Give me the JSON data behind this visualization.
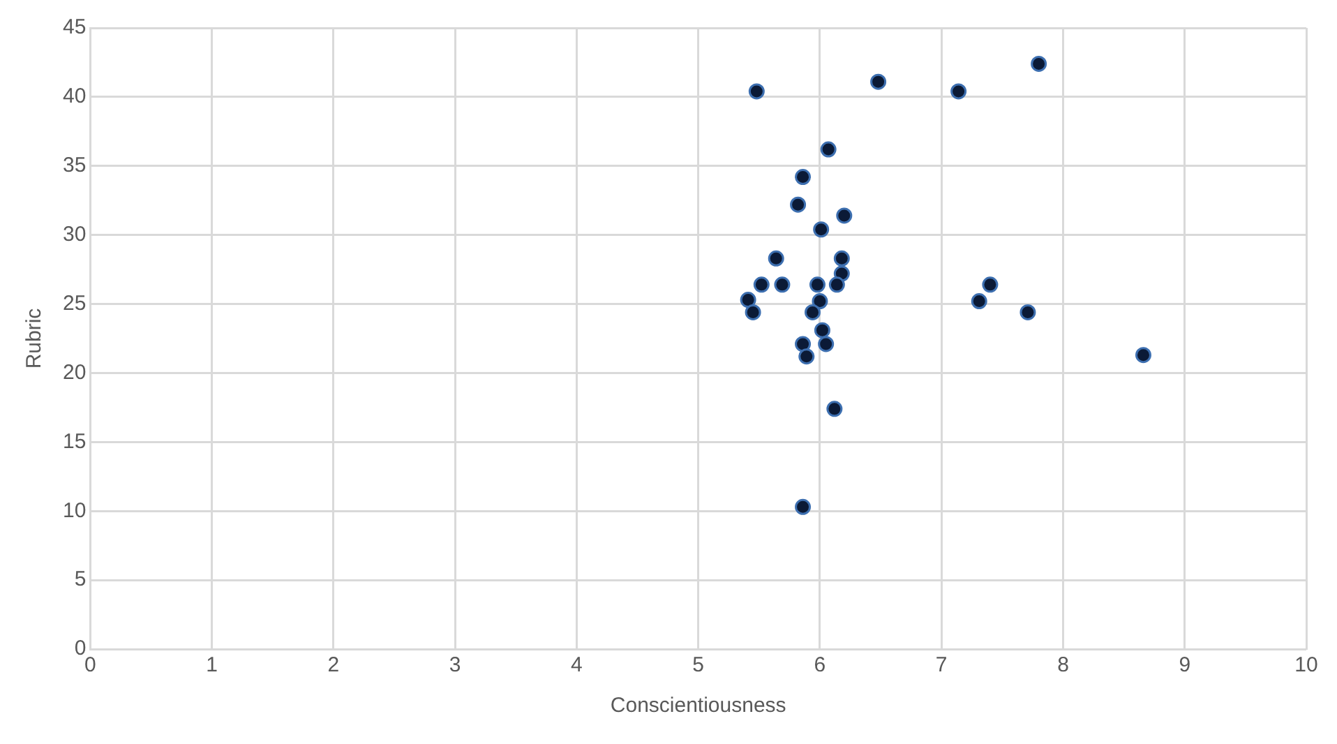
{
  "chart_data": {
    "type": "scatter",
    "xlabel": "Conscientiousness",
    "ylabel": "Rubric",
    "x": [
      5.48,
      6.48,
      7.14,
      7.8,
      6.07,
      5.86,
      5.82,
      6.2,
      6.01,
      5.64,
      6.18,
      6.18,
      5.52,
      5.69,
      5.98,
      6.14,
      5.41,
      6.0,
      5.45,
      5.94,
      6.02,
      5.86,
      6.05,
      5.89,
      6.12,
      5.86,
      7.4,
      7.31,
      7.71,
      8.66
    ],
    "series": [
      {
        "color": "#0b1a36",
        "values": [
          40.4,
          41.1,
          40.4,
          42.4,
          36.2,
          34.2,
          32.2,
          31.4,
          30.4,
          28.3,
          28.3,
          27.2,
          26.4,
          26.4,
          26.4,
          26.4,
          25.3,
          25.2,
          24.4,
          24.4,
          23.1,
          22.1,
          22.1,
          21.2,
          17.4,
          10.3,
          26.4,
          25.2,
          24.4,
          21.3
        ]
      }
    ],
    "xlim": [
      0,
      10
    ],
    "xticks": [
      0,
      1,
      2,
      3,
      4,
      5,
      6,
      7,
      8,
      9,
      10
    ],
    "ylim": [
      0,
      45
    ],
    "yticks": [
      0,
      5,
      10,
      15,
      20,
      25,
      30,
      35,
      40,
      45
    ],
    "grid": true,
    "legend": false,
    "marker": "circle"
  }
}
